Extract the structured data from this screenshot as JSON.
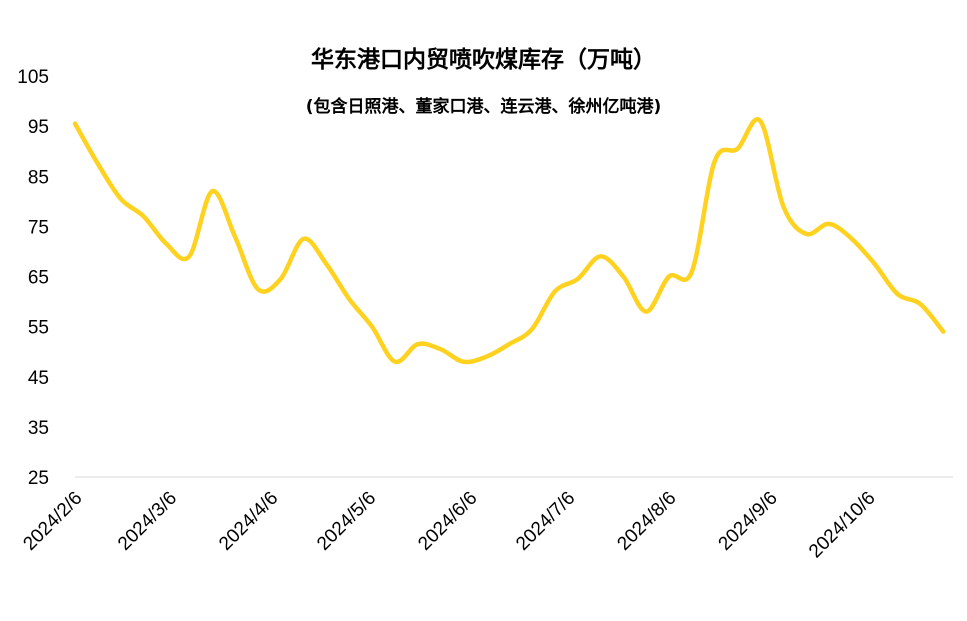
{
  "chart_data": {
    "type": "line",
    "title": "华东港口内贸喷吹煤库存（万吨）",
    "subtitle": "(包含日照港、董家口港、连云港、徐州亿吨港)",
    "xlabel": "",
    "ylabel": "",
    "ylim": [
      25,
      105
    ],
    "yticks": [
      25,
      35,
      45,
      55,
      65,
      75,
      85,
      95,
      105
    ],
    "xlim": [
      "2024-02-06",
      "2024-11-01"
    ],
    "xtick_labels": [
      "2024/2/6",
      "2024/3/6",
      "2024/4/6",
      "2024/5/6",
      "2024/6/6",
      "2024/7/6",
      "2024/8/6",
      "2024/9/6",
      "2024/10/6"
    ],
    "xtick_dates": [
      "2024-02-06",
      "2024-03-06",
      "2024-04-06",
      "2024-05-06",
      "2024-06-06",
      "2024-07-06",
      "2024-08-06",
      "2024-09-06",
      "2024-10-06"
    ],
    "grid": false,
    "legend": "none",
    "color": "#FFD21F",
    "series": [
      {
        "x": [
          "2024-02-06",
          "2024-02-13",
          "2024-02-20",
          "2024-02-27",
          "2024-03-05",
          "2024-03-12",
          "2024-03-19",
          "2024-03-26",
          "2024-04-02",
          "2024-04-09",
          "2024-04-16",
          "2024-04-23",
          "2024-04-30",
          "2024-05-07",
          "2024-05-14",
          "2024-05-21",
          "2024-05-28",
          "2024-06-04",
          "2024-06-11",
          "2024-06-18",
          "2024-06-25",
          "2024-07-02",
          "2024-07-09",
          "2024-07-16",
          "2024-07-23",
          "2024-07-30",
          "2024-08-06",
          "2024-08-13",
          "2024-08-20",
          "2024-08-27",
          "2024-09-03",
          "2024-09-10",
          "2024-09-17",
          "2024-09-24",
          "2024-10-01",
          "2024-10-08",
          "2024-10-15",
          "2024-10-22",
          "2024-10-29"
        ],
        "values": [
          95.5,
          87.5,
          80.5,
          77,
          71.5,
          69,
          82,
          73,
          62.5,
          64.5,
          72.5,
          67.5,
          60.5,
          55,
          48,
          51.5,
          50.5,
          48,
          49,
          51.5,
          54.5,
          62,
          64.5,
          69,
          65,
          58,
          65,
          66,
          88,
          90.5,
          96,
          79,
          73.5,
          75.5,
          72.5,
          67.5,
          61.5,
          59.5,
          54
        ]
      }
    ]
  }
}
